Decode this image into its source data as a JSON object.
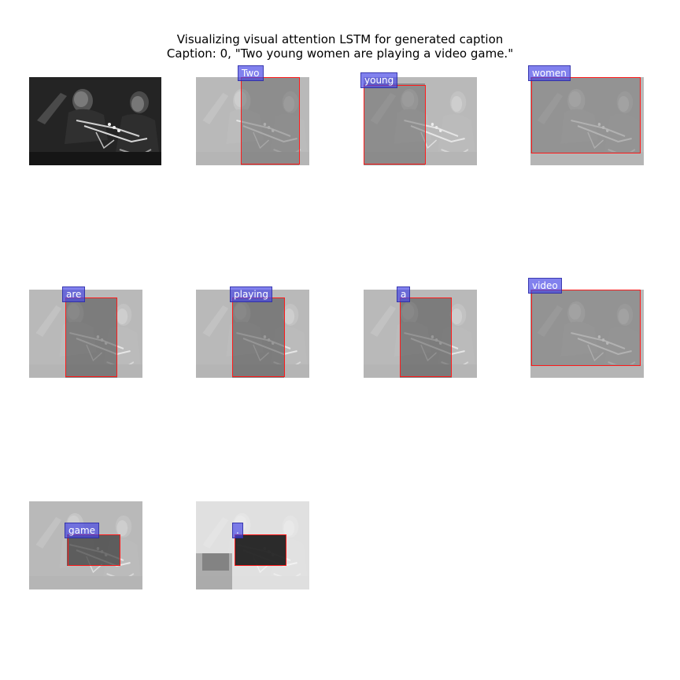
{
  "title": {
    "line1": "Visualizing visual attention LSTM for generated caption",
    "line2": "Caption: 0, \"Two young women are playing a video game.\""
  },
  "words": [
    "Two",
    "young",
    "women",
    "are",
    "playing",
    "a",
    "video",
    "game",
    "."
  ],
  "colors": {
    "box": "#ff1a1a",
    "label_bg": "#4646e6",
    "label_text": "#ffffff"
  }
}
